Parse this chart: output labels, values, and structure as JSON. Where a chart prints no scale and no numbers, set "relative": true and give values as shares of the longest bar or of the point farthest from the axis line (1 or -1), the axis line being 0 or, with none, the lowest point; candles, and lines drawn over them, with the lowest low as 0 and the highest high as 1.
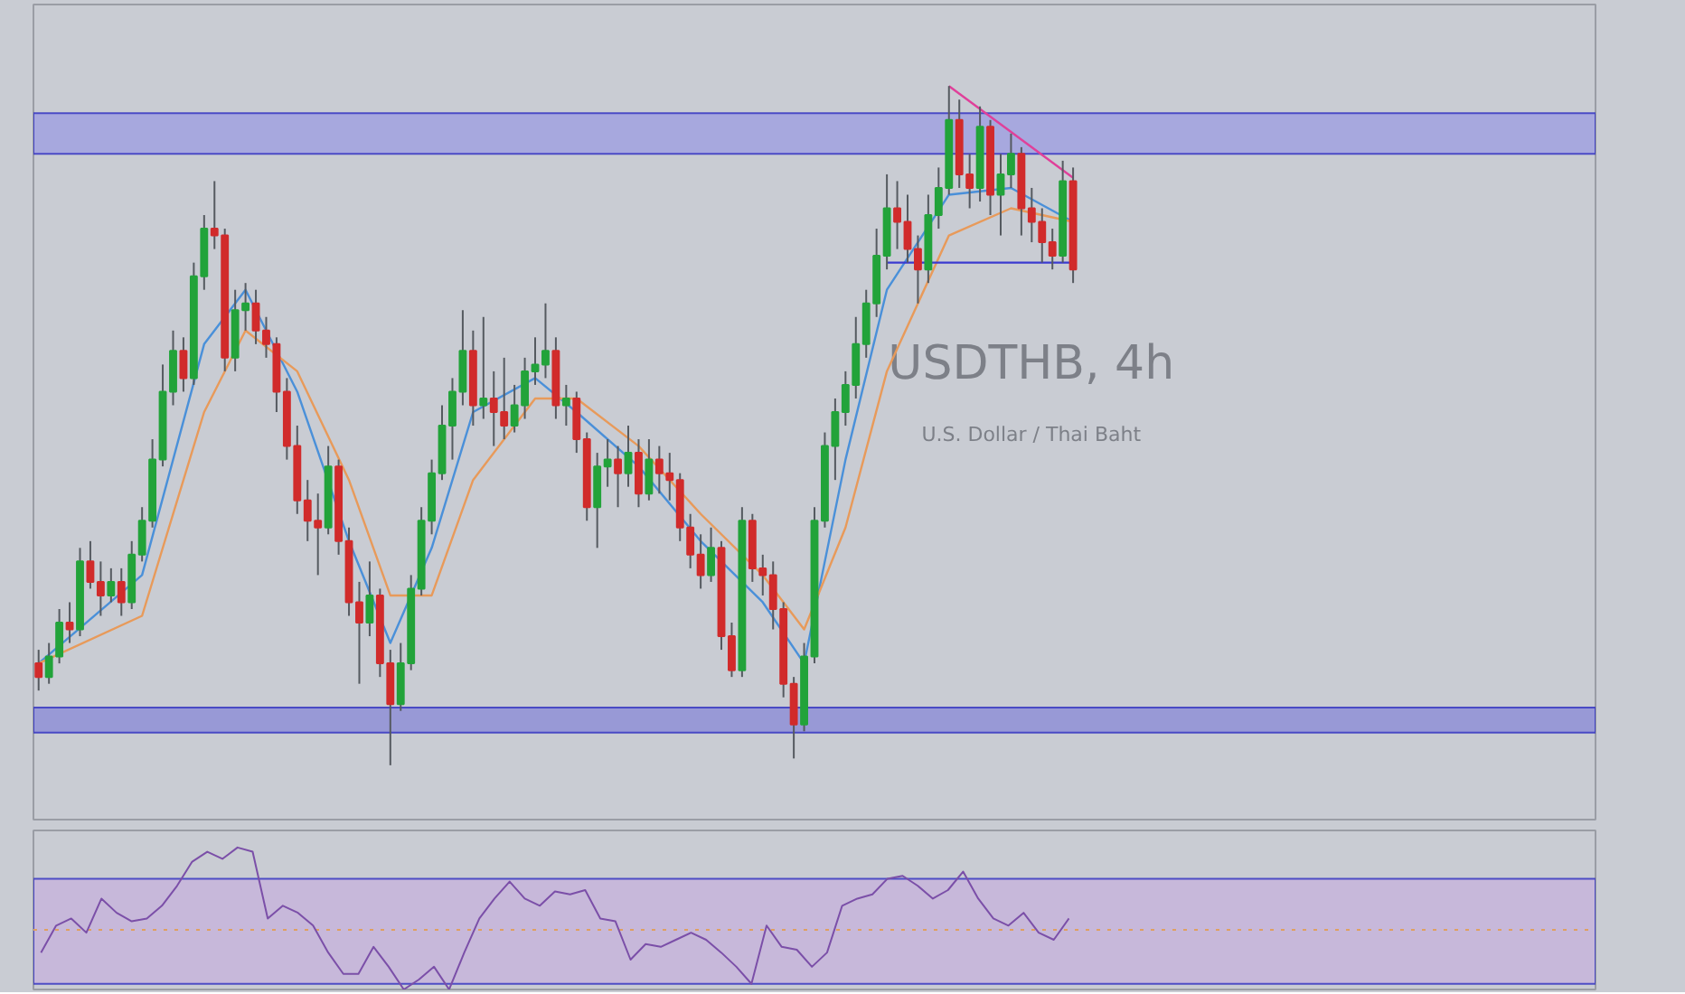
{
  "chart_data": [
    {
      "type": "candlestick",
      "title": "USDTHB, 4h",
      "subtitle": "U.S. Dollar / Thai Baht",
      "relative": true,
      "categories": [
        null,
        null,
        null,
        null,
        null,
        null,
        null,
        null,
        null,
        null,
        null,
        null,
        null,
        null,
        null,
        null,
        null,
        null,
        null,
        null,
        null,
        null,
        null,
        null,
        null,
        null,
        null,
        null,
        null,
        null,
        null,
        null,
        null,
        null,
        null,
        null,
        null,
        null,
        null,
        null,
        null,
        null,
        null,
        null,
        null,
        null,
        null,
        null,
        null,
        null,
        null,
        null,
        null,
        null,
        null,
        null,
        null,
        null,
        null,
        null,
        null,
        null,
        null,
        null,
        null,
        null,
        null,
        null,
        null,
        null,
        null,
        null,
        null,
        null,
        null,
        null,
        null,
        null,
        null,
        null,
        null,
        null,
        null,
        null,
        null,
        null,
        null,
        null,
        null,
        null,
        null,
        null,
        null,
        null,
        null,
        null,
        null,
        null,
        null,
        null,
        null
      ],
      "ohlc": [
        [
          0.15,
          0.17,
          0.11,
          0.13
        ],
        [
          0.13,
          0.18,
          0.12,
          0.16
        ],
        [
          0.16,
          0.23,
          0.15,
          0.21
        ],
        [
          0.21,
          0.24,
          0.18,
          0.2
        ],
        [
          0.2,
          0.32,
          0.19,
          0.3
        ],
        [
          0.3,
          0.33,
          0.26,
          0.27
        ],
        [
          0.27,
          0.3,
          0.22,
          0.25
        ],
        [
          0.25,
          0.29,
          0.24,
          0.27
        ],
        [
          0.27,
          0.29,
          0.22,
          0.24
        ],
        [
          0.24,
          0.33,
          0.23,
          0.31
        ],
        [
          0.31,
          0.38,
          0.3,
          0.36
        ],
        [
          0.36,
          0.48,
          0.35,
          0.45
        ],
        [
          0.45,
          0.59,
          0.44,
          0.55
        ],
        [
          0.55,
          0.64,
          0.53,
          0.61
        ],
        [
          0.61,
          0.63,
          0.55,
          0.57
        ],
        [
          0.57,
          0.74,
          0.56,
          0.72
        ],
        [
          0.72,
          0.81,
          0.7,
          0.79
        ],
        [
          0.79,
          0.86,
          0.76,
          0.78
        ],
        [
          0.78,
          0.79,
          0.58,
          0.6
        ],
        [
          0.6,
          0.7,
          0.58,
          0.67
        ],
        [
          0.67,
          0.71,
          0.64,
          0.68
        ],
        [
          0.68,
          0.7,
          0.62,
          0.64
        ],
        [
          0.64,
          0.66,
          0.6,
          0.62
        ],
        [
          0.62,
          0.63,
          0.52,
          0.55
        ],
        [
          0.55,
          0.57,
          0.45,
          0.47
        ],
        [
          0.47,
          0.5,
          0.37,
          0.39
        ],
        [
          0.39,
          0.42,
          0.33,
          0.36
        ],
        [
          0.36,
          0.4,
          0.28,
          0.35
        ],
        [
          0.35,
          0.47,
          0.34,
          0.44
        ],
        [
          0.44,
          0.45,
          0.31,
          0.33
        ],
        [
          0.33,
          0.35,
          0.22,
          0.24
        ],
        [
          0.24,
          0.27,
          0.12,
          0.21
        ],
        [
          0.21,
          0.3,
          0.19,
          0.25
        ],
        [
          0.25,
          0.26,
          0.13,
          0.15
        ],
        [
          0.15,
          0.17,
          0.0,
          0.09
        ],
        [
          0.09,
          0.18,
          0.08,
          0.15
        ],
        [
          0.15,
          0.28,
          0.14,
          0.26
        ],
        [
          0.26,
          0.38,
          0.25,
          0.36
        ],
        [
          0.36,
          0.45,
          0.34,
          0.43
        ],
        [
          0.43,
          0.53,
          0.42,
          0.5
        ],
        [
          0.5,
          0.57,
          0.45,
          0.55
        ],
        [
          0.55,
          0.67,
          0.53,
          0.61
        ],
        [
          0.61,
          0.64,
          0.5,
          0.53
        ],
        [
          0.53,
          0.66,
          0.51,
          0.54
        ],
        [
          0.54,
          0.58,
          0.47,
          0.52
        ],
        [
          0.52,
          0.6,
          0.48,
          0.5
        ],
        [
          0.5,
          0.56,
          0.49,
          0.53
        ],
        [
          0.53,
          0.6,
          0.51,
          0.58
        ],
        [
          0.58,
          0.63,
          0.56,
          0.59
        ],
        [
          0.59,
          0.68,
          0.57,
          0.61
        ],
        [
          0.61,
          0.63,
          0.51,
          0.53
        ],
        [
          0.53,
          0.56,
          0.5,
          0.54
        ],
        [
          0.54,
          0.55,
          0.46,
          0.48
        ],
        [
          0.48,
          0.49,
          0.36,
          0.38
        ],
        [
          0.38,
          0.46,
          0.32,
          0.44
        ],
        [
          0.44,
          0.48,
          0.41,
          0.45
        ],
        [
          0.45,
          0.47,
          0.38,
          0.43
        ],
        [
          0.43,
          0.5,
          0.41,
          0.46
        ],
        [
          0.46,
          0.48,
          0.38,
          0.4
        ],
        [
          0.4,
          0.48,
          0.39,
          0.45
        ],
        [
          0.45,
          0.47,
          0.4,
          0.43
        ],
        [
          0.43,
          0.46,
          0.39,
          0.42
        ],
        [
          0.42,
          0.43,
          0.33,
          0.35
        ],
        [
          0.35,
          0.37,
          0.29,
          0.31
        ],
        [
          0.31,
          0.34,
          0.26,
          0.28
        ],
        [
          0.28,
          0.35,
          0.27,
          0.32
        ],
        [
          0.32,
          0.33,
          0.17,
          0.19
        ],
        [
          0.19,
          0.21,
          0.13,
          0.14
        ],
        [
          0.14,
          0.38,
          0.13,
          0.36
        ],
        [
          0.36,
          0.37,
          0.27,
          0.29
        ],
        [
          0.29,
          0.31,
          0.25,
          0.28
        ],
        [
          0.28,
          0.3,
          0.2,
          0.23
        ],
        [
          0.23,
          0.24,
          0.1,
          0.12
        ],
        [
          0.12,
          0.13,
          0.01,
          0.06
        ],
        [
          0.06,
          0.18,
          0.05,
          0.16
        ],
        [
          0.16,
          0.38,
          0.15,
          0.36
        ],
        [
          0.36,
          0.49,
          0.35,
          0.47
        ],
        [
          0.47,
          0.54,
          0.42,
          0.52
        ],
        [
          0.52,
          0.58,
          0.5,
          0.56
        ],
        [
          0.56,
          0.66,
          0.54,
          0.62
        ],
        [
          0.62,
          0.7,
          0.6,
          0.68
        ],
        [
          0.68,
          0.79,
          0.66,
          0.75
        ],
        [
          0.75,
          0.87,
          0.73,
          0.82
        ],
        [
          0.82,
          0.86,
          0.76,
          0.8
        ],
        [
          0.8,
          0.84,
          0.74,
          0.76
        ],
        [
          0.76,
          0.78,
          0.68,
          0.73
        ],
        [
          0.73,
          0.84,
          0.71,
          0.81
        ],
        [
          0.81,
          0.88,
          0.79,
          0.85
        ],
        [
          0.85,
          1.0,
          0.84,
          0.95
        ],
        [
          0.95,
          0.98,
          0.85,
          0.87
        ],
        [
          0.87,
          0.9,
          0.82,
          0.85
        ],
        [
          0.85,
          0.97,
          0.83,
          0.94
        ],
        [
          0.94,
          0.95,
          0.81,
          0.84
        ],
        [
          0.84,
          0.9,
          0.78,
          0.87
        ],
        [
          0.87,
          0.93,
          0.85,
          0.9
        ],
        [
          0.9,
          0.91,
          0.78,
          0.82
        ],
        [
          0.82,
          0.85,
          0.77,
          0.8
        ],
        [
          0.8,
          0.82,
          0.74,
          0.77
        ],
        [
          0.77,
          0.79,
          0.73,
          0.75
        ],
        [
          0.75,
          0.89,
          0.74,
          0.86
        ],
        [
          0.86,
          0.88,
          0.71,
          0.73
        ]
      ],
      "colors": [
        "#d12b2b",
        "#22a33a",
        "#22a33a",
        "#d12b2b",
        "#22a33a",
        "#d12b2b",
        "#d12b2b",
        "#22a33a",
        "#d12b2b",
        "#22a33a",
        "#22a33a",
        "#22a33a",
        "#22a33a",
        "#22a33a",
        "#d12b2b",
        "#22a33a",
        "#22a33a",
        "#d12b2b",
        "#d12b2b",
        "#22a33a",
        "#22a33a",
        "#d12b2b",
        "#d12b2b",
        "#d12b2b",
        "#d12b2b",
        "#d12b2b",
        "#d12b2b",
        "#d12b2b",
        "#22a33a",
        "#d12b2b",
        "#d12b2b",
        "#d12b2b",
        "#22a33a",
        "#d12b2b",
        "#d12b2b",
        "#22a33a",
        "#22a33a",
        "#22a33a",
        "#22a33a",
        "#22a33a",
        "#22a33a",
        "#22a33a",
        "#d12b2b",
        "#22a33a",
        "#d12b2b",
        "#d12b2b",
        "#22a33a",
        "#22a33a",
        "#22a33a",
        "#22a33a",
        "#d12b2b",
        "#22a33a",
        "#d12b2b",
        "#d12b2b",
        "#22a33a",
        "#22a33a",
        "#d12b2b",
        "#22a33a",
        "#d12b2b",
        "#22a33a",
        "#d12b2b",
        "#d12b2b",
        "#d12b2b",
        "#d12b2b",
        "#d12b2b",
        "#22a33a",
        "#d12b2b",
        "#d12b2b",
        "#22a33a",
        "#d12b2b",
        "#d12b2b",
        "#d12b2b",
        "#d12b2b",
        "#d12b2b",
        "#22a33a",
        "#22a33a",
        "#22a33a",
        "#22a33a",
        "#22a33a",
        "#22a33a",
        "#22a33a",
        "#22a33a",
        "#22a33a",
        "#d12b2b",
        "#d12b2b",
        "#d12b2b",
        "#22a33a",
        "#22a33a",
        "#22a33a",
        "#d12b2b",
        "#d12b2b",
        "#22a33a",
        "#d12b2b",
        "#22a33a",
        "#22a33a",
        "#d12b2b",
        "#d12b2b",
        "#d12b2b",
        "#d12b2b",
        "#22a33a",
        "#d12b2b"
      ],
      "series": [
        {
          "type": "line",
          "color": "#4a90d9",
          "values": [
            0.15,
            null,
            null,
            null,
            null,
            null,
            null,
            null,
            null,
            null,
            0.28,
            null,
            null,
            null,
            null,
            null,
            0.62,
            null,
            null,
            null,
            0.7,
            null,
            null,
            null,
            null,
            0.55,
            null,
            null,
            null,
            null,
            0.33,
            null,
            null,
            null,
            0.18,
            null,
            null,
            null,
            0.32,
            null,
            null,
            null,
            0.52,
            null,
            null,
            null,
            null,
            null,
            0.57,
            null,
            null,
            null,
            0.52,
            null,
            null,
            null,
            null,
            null,
            0.44,
            null,
            null,
            null,
            null,
            null,
            0.33,
            null,
            null,
            null,
            null,
            null,
            0.24,
            null,
            null,
            null,
            0.15,
            null,
            null,
            null,
            0.45,
            null,
            null,
            null,
            0.7,
            null,
            null,
            null,
            null,
            null,
            0.84,
            null,
            null,
            null,
            null,
            null,
            0.85,
            null,
            null,
            null,
            null,
            null,
            0.8
          ]
        },
        {
          "type": "line",
          "color": "#e89a5a",
          "values": [
            0.15,
            null,
            null,
            null,
            null,
            null,
            null,
            null,
            null,
            null,
            0.22,
            null,
            null,
            null,
            null,
            null,
            0.52,
            null,
            null,
            null,
            0.64,
            null,
            null,
            null,
            null,
            0.58,
            null,
            null,
            null,
            null,
            0.42,
            null,
            null,
            null,
            0.25,
            null,
            null,
            null,
            0.25,
            null,
            null,
            null,
            0.42,
            null,
            null,
            null,
            null,
            null,
            0.54,
            null,
            null,
            null,
            0.54,
            null,
            null,
            null,
            null,
            null,
            0.47,
            null,
            null,
            null,
            null,
            null,
            0.37,
            null,
            null,
            null,
            null,
            null,
            0.28,
            null,
            null,
            null,
            0.2,
            null,
            null,
            null,
            0.35,
            null,
            null,
            null,
            0.58,
            null,
            null,
            null,
            null,
            null,
            0.78,
            null,
            null,
            null,
            null,
            null,
            0.82,
            null,
            null,
            null,
            null,
            null,
            0.8
          ]
        },
        {
          "type": "line",
          "color": "#e0409a",
          "values": [
            null,
            null,
            null,
            null,
            null,
            null,
            null,
            null,
            null,
            null,
            null,
            null,
            null,
            null,
            null,
            null,
            null,
            null,
            null,
            null,
            null,
            null,
            null,
            null,
            null,
            null,
            null,
            null,
            null,
            null,
            null,
            null,
            null,
            null,
            null,
            null,
            null,
            null,
            null,
            null,
            null,
            null,
            null,
            null,
            null,
            null,
            null,
            null,
            null,
            null,
            null,
            null,
            null,
            null,
            null,
            null,
            null,
            null,
            null,
            null,
            null,
            null,
            null,
            null,
            null,
            null,
            null,
            null,
            null,
            null,
            null,
            null,
            null,
            null,
            null,
            null,
            null,
            null,
            null,
            null,
            null,
            null,
            null,
            null,
            null,
            null,
            null,
            null,
            1.0,
            null,
            null,
            null,
            null,
            null,
            null,
            null,
            null,
            null,
            null,
            null,
            0.865
          ]
        },
        {
          "type": "line",
          "color": "#3a3ad0",
          "values": [
            null,
            null,
            null,
            null,
            null,
            null,
            null,
            null,
            null,
            null,
            null,
            null,
            null,
            null,
            null,
            null,
            null,
            null,
            null,
            null,
            null,
            null,
            null,
            null,
            null,
            null,
            null,
            null,
            null,
            null,
            null,
            null,
            null,
            null,
            null,
            null,
            null,
            null,
            null,
            null,
            null,
            null,
            null,
            null,
            null,
            null,
            null,
            null,
            null,
            null,
            null,
            null,
            null,
            null,
            null,
            null,
            null,
            null,
            null,
            null,
            null,
            null,
            null,
            null,
            null,
            null,
            null,
            null,
            null,
            null,
            null,
            null,
            null,
            null,
            null,
            null,
            null,
            null,
            null,
            null,
            null,
            null,
            0.74,
            null,
            null,
            null,
            null,
            null,
            null,
            null,
            null,
            null,
            null,
            null,
            null,
            null,
            null,
            null,
            null,
            null,
            0.74
          ]
        }
      ],
      "bands": [
        {
          "axis": "y",
          "from": 0.9,
          "to": 0.96,
          "color": "#8a8ae8"
        },
        {
          "axis": "y",
          "from": 0.048,
          "to": 0.085,
          "color": "#7070d8"
        }
      ]
    },
    {
      "type": "line",
      "relative": true,
      "categories": [
        null,
        null,
        null,
        null,
        null,
        null,
        null,
        null,
        null,
        null,
        null,
        null,
        null,
        null,
        null,
        null,
        null,
        null,
        null,
        null,
        null,
        null,
        null,
        null,
        null,
        null,
        null,
        null,
        null,
        null,
        null,
        null,
        null,
        null,
        null,
        null,
        null,
        null,
        null,
        null,
        null,
        null,
        null,
        null,
        null,
        null,
        null,
        null,
        null,
        null,
        null,
        null,
        null,
        null,
        null,
        null,
        null,
        null,
        null,
        null,
        null,
        null,
        null,
        null,
        null,
        null,
        null,
        null,
        null
      ],
      "series": [
        {
          "color": "#7b4fa8",
          "values": [
            0.26,
            0.45,
            0.5,
            0.4,
            0.64,
            0.54,
            0.48,
            0.5,
            0.59,
            0.73,
            0.9,
            0.97,
            0.92,
            1.0,
            0.97,
            0.5,
            0.59,
            0.54,
            0.45,
            0.26,
            0.11,
            0.11,
            0.3,
            0.16,
            0.0,
            0.07,
            0.16,
            0.0,
            0.26,
            0.5,
            0.64,
            0.76,
            0.64,
            0.59,
            0.69,
            0.67,
            0.7,
            0.5,
            0.48,
            0.21,
            0.32,
            0.3,
            0.35,
            0.4,
            0.35,
            0.26,
            0.16,
            0.04,
            0.45,
            0.3,
            0.28,
            0.16,
            0.26,
            0.59,
            0.64,
            0.67,
            0.78,
            0.8,
            0.73,
            0.64,
            0.7,
            0.83,
            0.64,
            0.5,
            0.45,
            0.54,
            0.4,
            0.35,
            0.5
          ]
        }
      ],
      "bands": [
        {
          "axis": "y",
          "from": 0.04,
          "to": 0.78,
          "color": "#c4a8e0"
        }
      ],
      "ref_lines": [
        {
          "axis": "y",
          "value": 0.42,
          "color": "#e0a060",
          "line_style": "dotted"
        }
      ]
    }
  ]
}
